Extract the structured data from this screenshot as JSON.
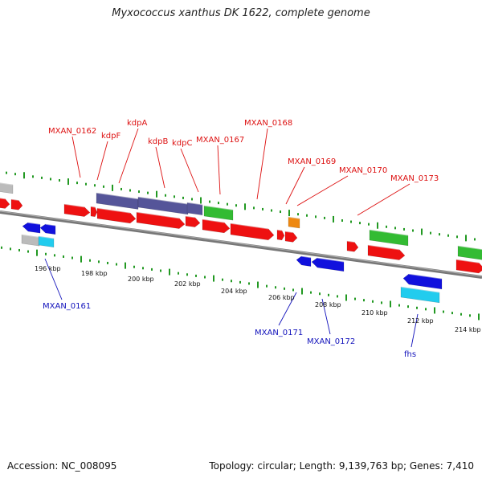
{
  "title": "Myxococcus xanthus DK 1622, complete genome",
  "footer": {
    "accession": "Accession: NC_008095",
    "info": "Topology: circular; Length: 9,139,763 bp; Genes: 7,410"
  },
  "colors": {
    "red": "#ee1111",
    "blue": "#1111dd",
    "purple": "#555599",
    "green": "#33bb33",
    "cyan": "#22ccee",
    "grey": "#bbbbbb",
    "orange": "#ee8811",
    "backbone": "#777777",
    "tick": "#229922",
    "label_forward": "#dd1111",
    "label_reverse": "#1111bb"
  },
  "scale": {
    "unit": "kbp",
    "labels": [
      "196 kbp",
      "198 kbp",
      "200 kbp",
      "202 kbp",
      "204 kbp",
      "206 kbp",
      "208 kbp",
      "210 kbp",
      "212 kbp",
      "214 kbp"
    ]
  },
  "labels": {
    "forward": [
      "MXAN_0162",
      "kdpF",
      "kdpA",
      "kdpB",
      "kdpC",
      "MXAN_0167",
      "MXAN_0168",
      "MXAN_0169",
      "MXAN_0170",
      "MXAN_0173"
    ],
    "reverse": [
      "MXAN_0161",
      "MXAN_0171",
      "MXAN_0172",
      "fhs"
    ]
  }
}
